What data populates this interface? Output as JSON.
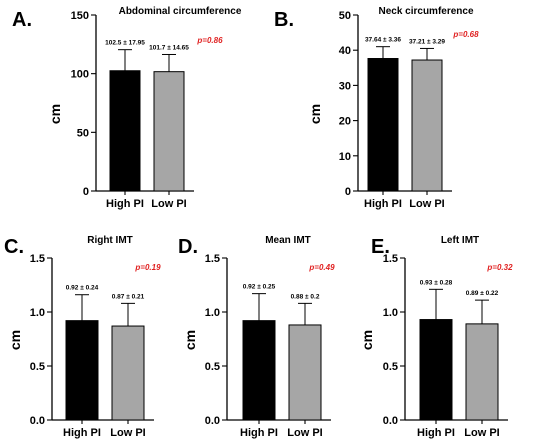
{
  "colors": {
    "high_bar": "#000000",
    "low_bar": "#a6a6a6",
    "pvalue": "#e02020"
  },
  "chart_data": [
    {
      "type": "bar",
      "letter": "A.",
      "title": "Abdominal circumference",
      "ylabel": "cm",
      "categories": [
        "High PI",
        "Low PI"
      ],
      "values": [
        102.5,
        101.7
      ],
      "errors": [
        17.95,
        14.65
      ],
      "data_labels": [
        "102.5  ± 17.95",
        "101.7 ± 14.65"
      ],
      "ylim": [
        0,
        150
      ],
      "yticks": [
        0,
        50,
        100,
        150
      ],
      "ytick_labels": [
        "0",
        "50",
        "100",
        "150"
      ],
      "pvalue": "p=0.86",
      "grid": false
    },
    {
      "type": "bar",
      "letter": "B.",
      "title": "Neck circumference",
      "ylabel": "cm",
      "categories": [
        "High PI",
        "Low PI"
      ],
      "values": [
        37.64,
        37.21
      ],
      "errors": [
        3.36,
        3.29
      ],
      "data_labels": [
        "37.64  ± 3.36",
        "37.21 ± 3.29"
      ],
      "ylim": [
        0,
        50
      ],
      "yticks": [
        0,
        10,
        20,
        30,
        40,
        50
      ],
      "ytick_labels": [
        "0",
        "10",
        "20",
        "30",
        "40",
        "50"
      ],
      "pvalue": "p=0.68",
      "grid": false
    },
    {
      "type": "bar",
      "letter": "C.",
      "title": "Right IMT",
      "ylabel": "cm",
      "categories": [
        "High PI",
        "Low PI"
      ],
      "values": [
        0.92,
        0.87
      ],
      "errors": [
        0.24,
        0.21
      ],
      "data_labels": [
        "0.92 ± 0.24",
        "0.87 ± 0.21"
      ],
      "ylim": [
        0,
        1.5
      ],
      "yticks": [
        0,
        0.5,
        1.0,
        1.5
      ],
      "ytick_labels": [
        "0.0",
        "0.5",
        "1.0",
        "1.5"
      ],
      "pvalue": "p=0.19",
      "grid": false
    },
    {
      "type": "bar",
      "letter": "D.",
      "title": "Mean IMT",
      "ylabel": "cm",
      "categories": [
        "High PI",
        "Low PI"
      ],
      "values": [
        0.92,
        0.88
      ],
      "errors": [
        0.25,
        0.2
      ],
      "data_labels": [
        "0.92 ± 0.25",
        "0.88 ± 0.2"
      ],
      "ylim": [
        0,
        1.5
      ],
      "yticks": [
        0,
        0.5,
        1.0,
        1.5
      ],
      "ytick_labels": [
        "0.0",
        "0.5",
        "1.0",
        "1.5"
      ],
      "pvalue": "p=0.49",
      "grid": false
    },
    {
      "type": "bar",
      "letter": "E.",
      "title": "Left IMT",
      "ylabel": "cm",
      "categories": [
        "High PI",
        "Low PI"
      ],
      "values": [
        0.93,
        0.89
      ],
      "errors": [
        0.28,
        0.22
      ],
      "data_labels": [
        "0.93 ± 0.28",
        "0.89 ± 0.22"
      ],
      "ylim": [
        0,
        1.5
      ],
      "yticks": [
        0,
        0.5,
        1.0,
        1.5
      ],
      "ytick_labels": [
        "0.0",
        "0.5",
        "1.0",
        "1.5"
      ],
      "pvalue": "p=0.32",
      "grid": false
    }
  ]
}
